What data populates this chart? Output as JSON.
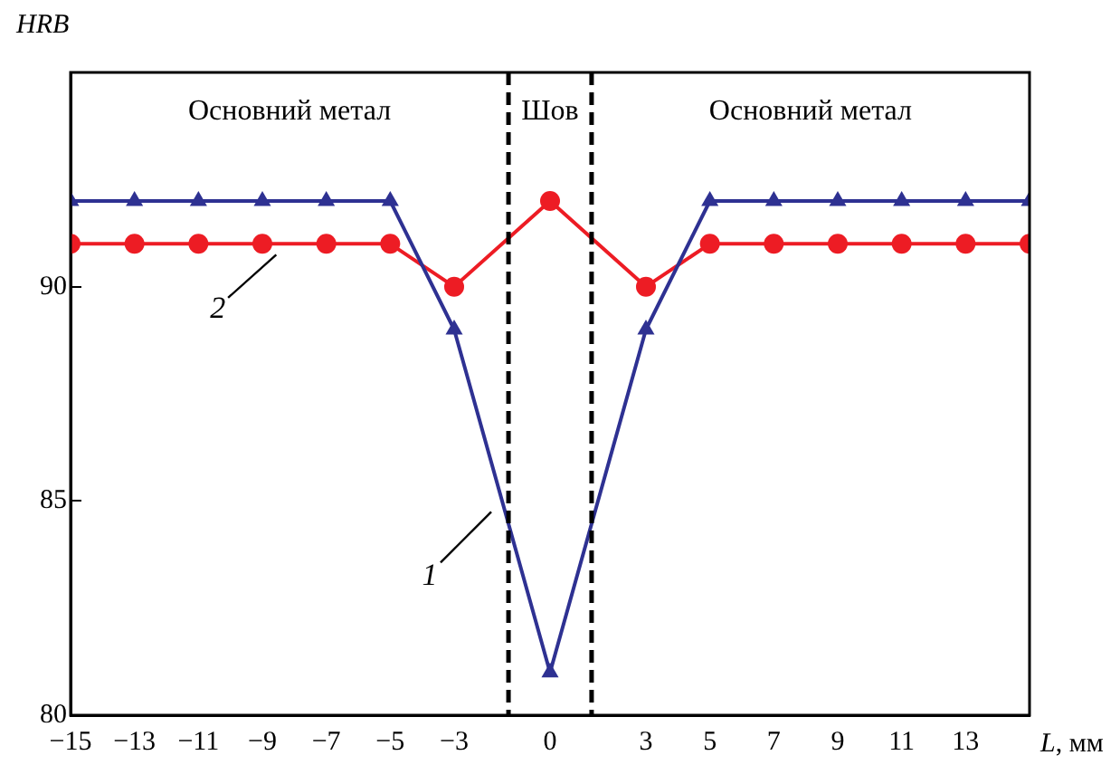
{
  "chart_data": {
    "type": "line",
    "ylabel": "HRB",
    "xlabel": "L, мм",
    "x": [
      -15,
      -13,
      -11,
      -9,
      -7,
      -5,
      -3,
      0,
      3,
      5,
      7,
      9,
      11,
      13,
      15
    ],
    "series": [
      {
        "name": "1",
        "color": "#2e3192",
        "marker": "triangle",
        "values": [
          92,
          92,
          92,
          92,
          92,
          92,
          89,
          81,
          89,
          92,
          92,
          92,
          92,
          92,
          92
        ]
      },
      {
        "name": "2",
        "color": "#ed1c24",
        "marker": "circle",
        "values": [
          91,
          91,
          91,
          91,
          91,
          91,
          90,
          92,
          90,
          91,
          91,
          91,
          91,
          91,
          91
        ]
      }
    ],
    "xlim": [
      -15,
      15
    ],
    "xticks": [
      -15,
      -13,
      -11,
      -9,
      -7,
      -5,
      -3,
      0,
      3,
      5,
      7,
      9,
      11,
      13,
      {
        "value": 15,
        "label": null
      }
    ],
    "ylim": [
      80,
      95
    ],
    "yticks": [
      80,
      85,
      90
    ],
    "ref_lines": [
      {
        "axis": "x",
        "value": -1.3,
        "line_style": "dashed",
        "color": "#000000"
      },
      {
        "axis": "x",
        "value": 1.3,
        "line_style": "dashed",
        "color": "#000000"
      }
    ],
    "annotations": [
      "Основний метал",
      "Шов",
      "Основний метал"
    ],
    "grid": false,
    "legend": false,
    "line_style": "solid"
  }
}
